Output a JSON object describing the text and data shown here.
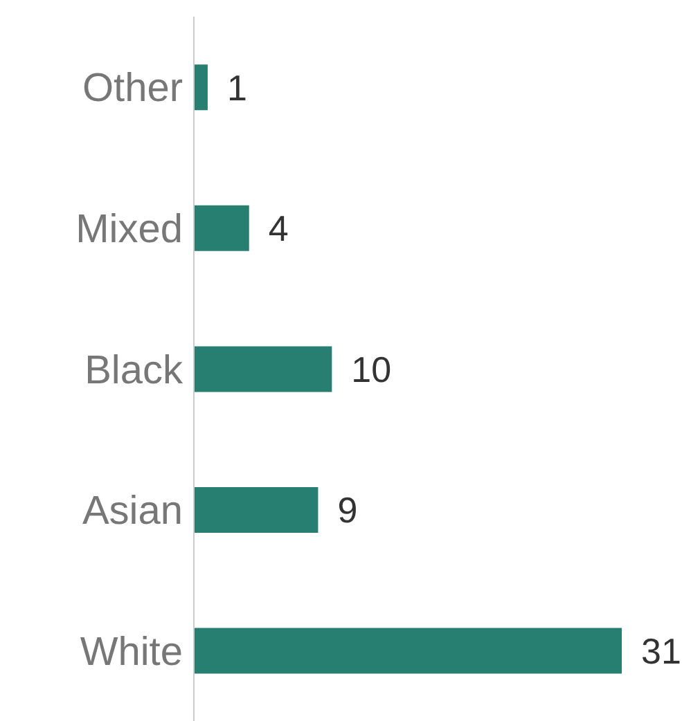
{
  "chart_data": {
    "type": "bar",
    "orientation": "horizontal",
    "categories": [
      "Other",
      "Mixed",
      "Black",
      "Asian",
      "White"
    ],
    "values": [
      1,
      4,
      10,
      9,
      31
    ],
    "color": "#277f72",
    "data_labels": true,
    "tick_labels": "y"
  }
}
